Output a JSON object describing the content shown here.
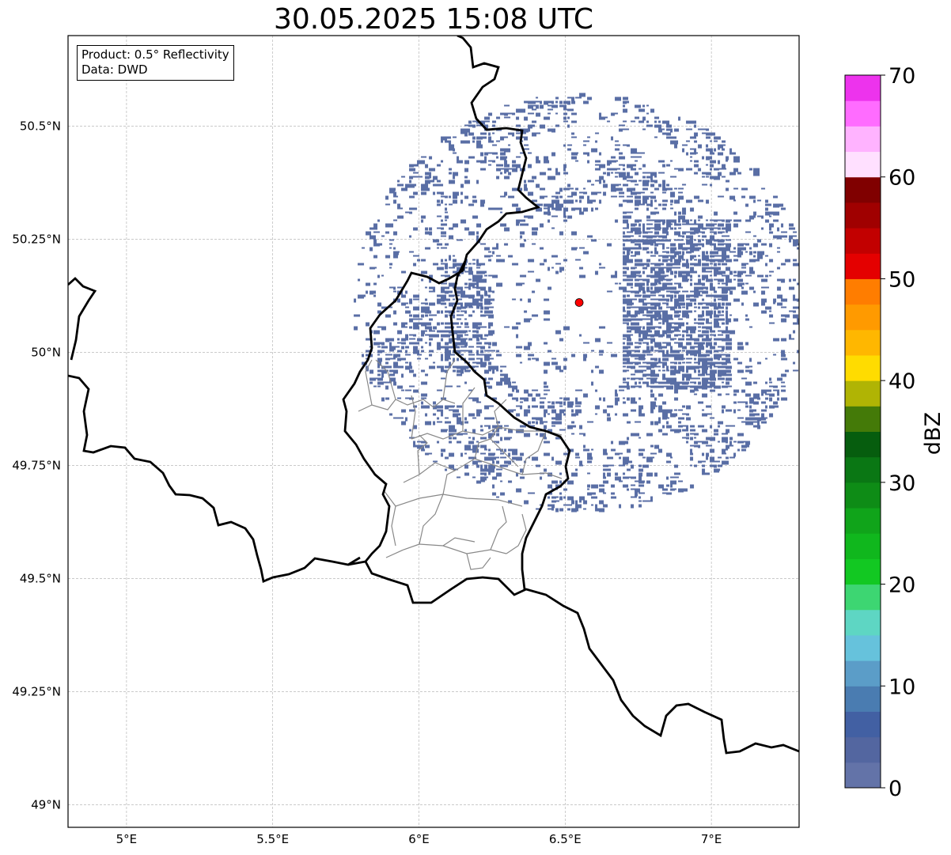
{
  "title": "30.05.2025 15:08 UTC",
  "infobox": {
    "product": "Product: 0.5° Reflectivity",
    "data": "Data: DWD"
  },
  "map": {
    "lon_range": [
      4.8,
      7.3
    ],
    "lat_range": [
      48.95,
      50.7
    ],
    "lon_ticks": [
      {
        "value": 5.0,
        "label": "5°E"
      },
      {
        "value": 5.5,
        "label": "5.5°E"
      },
      {
        "value": 6.0,
        "label": "6°E"
      },
      {
        "value": 6.5,
        "label": "6.5°E"
      },
      {
        "value": 7.0,
        "label": "7°E"
      }
    ],
    "lat_ticks": [
      {
        "value": 49.0,
        "label": "49°N"
      },
      {
        "value": 49.25,
        "label": "49.25°N"
      },
      {
        "value": 49.5,
        "label": "49.5°N"
      },
      {
        "value": 49.75,
        "label": "49.75°N"
      },
      {
        "value": 50.0,
        "label": "50°N"
      },
      {
        "value": 50.25,
        "label": "50.25°N"
      },
      {
        "value": 50.5,
        "label": "50.5°N"
      }
    ],
    "radar_site": {
      "lon": 6.548,
      "lat": 50.11,
      "color": "#ff0000"
    },
    "radar_range_deg": 0.45,
    "echo_color": "#5066a0"
  },
  "colorbar": {
    "label": "dBZ",
    "min": 0,
    "max": 70,
    "step": 2.5,
    "ticks": [
      {
        "value": 0,
        "label": "0"
      },
      {
        "value": 10,
        "label": "10"
      },
      {
        "value": 20,
        "label": "20"
      },
      {
        "value": 30,
        "label": "30"
      },
      {
        "value": 40,
        "label": "40"
      },
      {
        "value": 50,
        "label": "50"
      },
      {
        "value": 60,
        "label": "60"
      },
      {
        "value": 70,
        "label": "70"
      }
    ],
    "colors": [
      "#6373a8",
      "#5366a0",
      "#4260a3",
      "#4a7cb1",
      "#5b9dc8",
      "#66c2dc",
      "#5ed6c3",
      "#3dd672",
      "#12c822",
      "#10b71d",
      "#10a41a",
      "#0e8c16",
      "#0a7714",
      "#065d0e",
      "#447a08",
      "#b0b404",
      "#ffdc00",
      "#ffb700",
      "#ff9a00",
      "#ff7d00",
      "#e40000",
      "#c20000",
      "#a00000",
      "#800000",
      "#ffe0ff",
      "#ffb3ff",
      "#ff6cff",
      "#ed33ed"
    ]
  }
}
